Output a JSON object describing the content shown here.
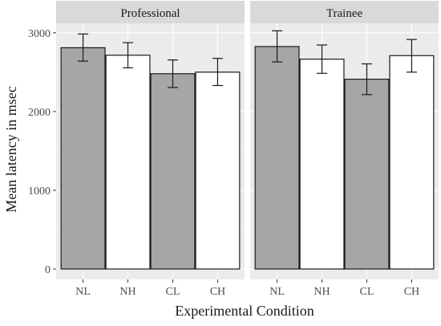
{
  "chart_data": {
    "type": "bar",
    "xlabel": "Experimental Condition",
    "ylabel": "Mean latency in msec",
    "ylim": [
      0,
      3100
    ],
    "yticks": [
      0,
      1000,
      2000,
      3000
    ],
    "grid": true,
    "categories": [
      "NL",
      "NH",
      "CL",
      "CH"
    ],
    "colors": {
      "shaded": "#a6a6a6",
      "unshaded": "#ffffff"
    },
    "bar_fill": [
      "shaded",
      "unshaded",
      "shaded",
      "unshaded"
    ],
    "panels": [
      {
        "name": "Professional",
        "values": [
          2810,
          2715,
          2480,
          2500
        ],
        "error_low": [
          2640,
          2555,
          2305,
          2330
        ],
        "error_high": [
          2985,
          2875,
          2655,
          2675
        ]
      },
      {
        "name": "Trainee",
        "values": [
          2825,
          2665,
          2410,
          2710
        ],
        "error_low": [
          2630,
          2485,
          2215,
          2500
        ],
        "error_high": [
          3025,
          2845,
          2605,
          2915
        ]
      }
    ]
  }
}
